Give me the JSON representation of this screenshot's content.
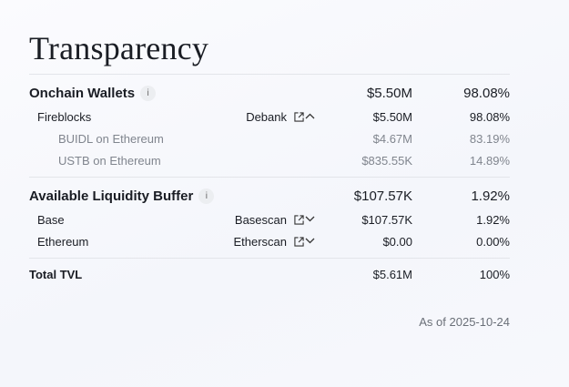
{
  "title": "Transparency",
  "sections": [
    {
      "label": "Onchain Wallets",
      "amount": "$5.50M",
      "percent": "98.08%",
      "rows": [
        {
          "label": "Fireblocks",
          "link": "Debank",
          "chevron": "chevron-up",
          "amount": "$5.50M",
          "percent": "98.08%",
          "children": [
            {
              "label": "BUIDL on Ethereum",
              "amount": "$4.67M",
              "percent": "83.19%"
            },
            {
              "label": "USTB on Ethereum",
              "amount": "$835.55K",
              "percent": "14.89%"
            }
          ]
        }
      ]
    },
    {
      "label": "Available Liquidity Buffer",
      "amount": "$107.57K",
      "percent": "1.92%",
      "rows": [
        {
          "label": "Base",
          "link": "Basescan",
          "chevron": "chevron-down",
          "amount": "$107.57K",
          "percent": "1.92%"
        },
        {
          "label": "Ethereum",
          "link": "Etherscan",
          "chevron": "chevron-down",
          "amount": "$0.00",
          "percent": "0.00%"
        }
      ]
    }
  ],
  "total": {
    "label": "Total TVL",
    "amount": "$5.61M",
    "percent": "100%"
  },
  "as_of": "As of 2025-10-24",
  "info_glyph": "i"
}
